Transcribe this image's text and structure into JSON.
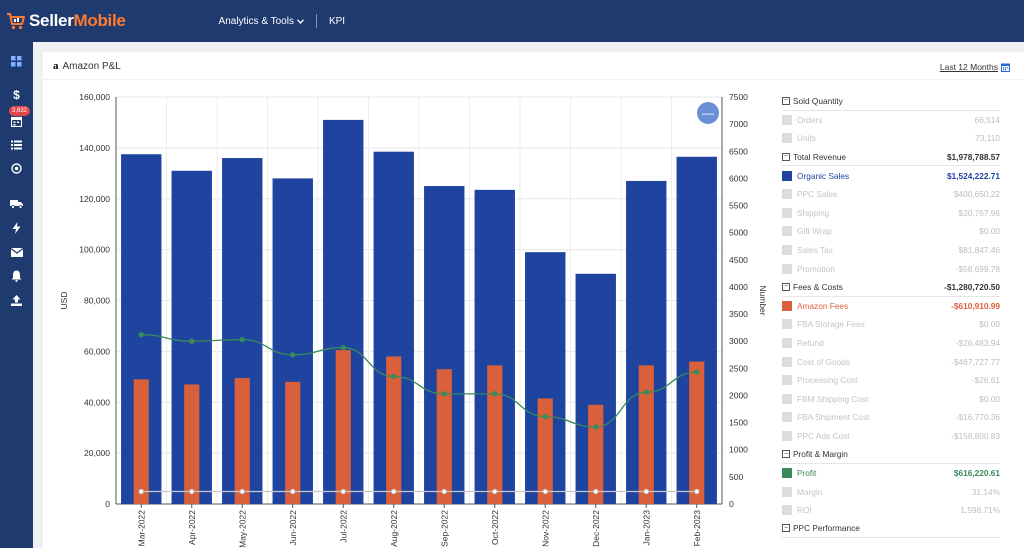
{
  "app": {
    "logo_prefix": "Seller",
    "logo_suffix": "Mobile",
    "brand_color": "#1e3a6e",
    "accent_color": "#ff7a2e"
  },
  "nav": {
    "analytics_label": "Analytics & Tools",
    "kpi_label": "KPI"
  },
  "sidebar": {
    "badge": "3,632",
    "icons": [
      "dashboard-icon",
      "dollar-icon",
      "calendar-icon",
      "list-icon",
      "target-icon",
      "truck-icon",
      "bolt-icon",
      "mail-icon",
      "bell-icon",
      "upload-icon"
    ]
  },
  "card": {
    "title": "Amazon P&L",
    "amazon_logo": "a",
    "range_label": "Last 12 Months",
    "collapse_label": "—"
  },
  "chart_data": {
    "type": "bar",
    "categories": [
      "Mar-2022",
      "Apr-2022",
      "May-2022",
      "Jun-2022",
      "Jul-2022",
      "Aug-2022",
      "Sep-2022",
      "Oct-2022",
      "Nov-2022",
      "Dec-2022",
      "Jan-2023",
      "Feb-2023"
    ],
    "series": [
      {
        "axis": "left",
        "kind": "bar",
        "color": "#1f44a0",
        "values": [
          137500,
          131000,
          136000,
          128000,
          151000,
          138500,
          125000,
          123500,
          99000,
          90500,
          127000,
          136500
        ]
      },
      {
        "axis": "left",
        "kind": "bar",
        "color": "#d9603a",
        "values": [
          49000,
          47000,
          49500,
          48000,
          60500,
          58000,
          53000,
          54500,
          41500,
          39000,
          54500,
          56000
        ]
      },
      {
        "axis": "right",
        "kind": "line",
        "color": "#3a8a5a",
        "values": [
          3120,
          3000,
          3030,
          2750,
          2880,
          2350,
          2030,
          2030,
          1610,
          1420,
          2060,
          2430
        ]
      },
      {
        "axis": "right",
        "kind": "line",
        "color": "#c8c8c8",
        "values": [
          230,
          230,
          230,
          230,
          230,
          230,
          230,
          230,
          230,
          230,
          230,
          230
        ]
      }
    ],
    "ylabel": "USD",
    "y2label": "Number",
    "ylim": [
      0,
      160000
    ],
    "y2lim": [
      0,
      7500
    ],
    "yticks": [
      "0",
      "20,000",
      "40,000",
      "60,000",
      "80,000",
      "100,000",
      "120,000",
      "140,000",
      "160,000"
    ],
    "y2ticks": [
      "0",
      "500",
      "1000",
      "1500",
      "2000",
      "2500",
      "3000",
      "3500",
      "4000",
      "4500",
      "5000",
      "5500",
      "6000",
      "6500",
      "7000",
      "7500"
    ],
    "grid": true,
    "legend": "none"
  },
  "metrics": {
    "rows": [
      {
        "kind": "section",
        "label": "Sold Quantity",
        "value": ""
      },
      {
        "kind": "dim",
        "label": "Orders",
        "value": "66,514"
      },
      {
        "kind": "dim",
        "label": "Units",
        "value": "73,110"
      },
      {
        "kind": "section",
        "label": "Total Revenue",
        "value": "$1,978,788.57"
      },
      {
        "kind": "active",
        "label": "Organic Sales",
        "value": "$1,524,222.71",
        "color": "#1f44a0"
      },
      {
        "kind": "dim",
        "label": "PPC Sales",
        "value": "$400,650.22"
      },
      {
        "kind": "dim",
        "label": "Shipping",
        "value": "$30,767.96"
      },
      {
        "kind": "dim",
        "label": "Gift Wrap",
        "value": "$0.00"
      },
      {
        "kind": "dim",
        "label": "Sales Tax",
        "value": "$81,847.46"
      },
      {
        "kind": "dim",
        "label": "Promotion",
        "value": "-$58,699.78"
      },
      {
        "kind": "section",
        "label": "Fees & Costs",
        "value": "-$1,280,720.50"
      },
      {
        "kind": "active",
        "label": "Amazon Fees",
        "value": "-$610,910.99",
        "color": "#d9603a"
      },
      {
        "kind": "dim",
        "label": "FBA Storage Fees",
        "value": "$0.00"
      },
      {
        "kind": "dim",
        "label": "Refund",
        "value": "-$26,483.94"
      },
      {
        "kind": "dim",
        "label": "Cost of Goods",
        "value": "-$467,727.77"
      },
      {
        "kind": "dim",
        "label": "Processing Cost",
        "value": "-$26.61"
      },
      {
        "kind": "dim",
        "label": "FBM Shipping Cost",
        "value": "$0.00"
      },
      {
        "kind": "dim",
        "label": "FBA Shipment Cost",
        "value": "-$16,770.36"
      },
      {
        "kind": "dim",
        "label": "PPC Ads Cost",
        "value": "-$158,800.83"
      },
      {
        "kind": "section",
        "label": "Profit & Margin",
        "value": ""
      },
      {
        "kind": "active",
        "label": "Profit",
        "value": "$616,220.61",
        "color": "#3a8a5a"
      },
      {
        "kind": "dim",
        "label": "Margin",
        "value": "31.14%"
      },
      {
        "kind": "dim",
        "label": "ROI",
        "value": "1,598.71%"
      },
      {
        "kind": "section",
        "label": "PPC Performance",
        "value": ""
      }
    ]
  }
}
